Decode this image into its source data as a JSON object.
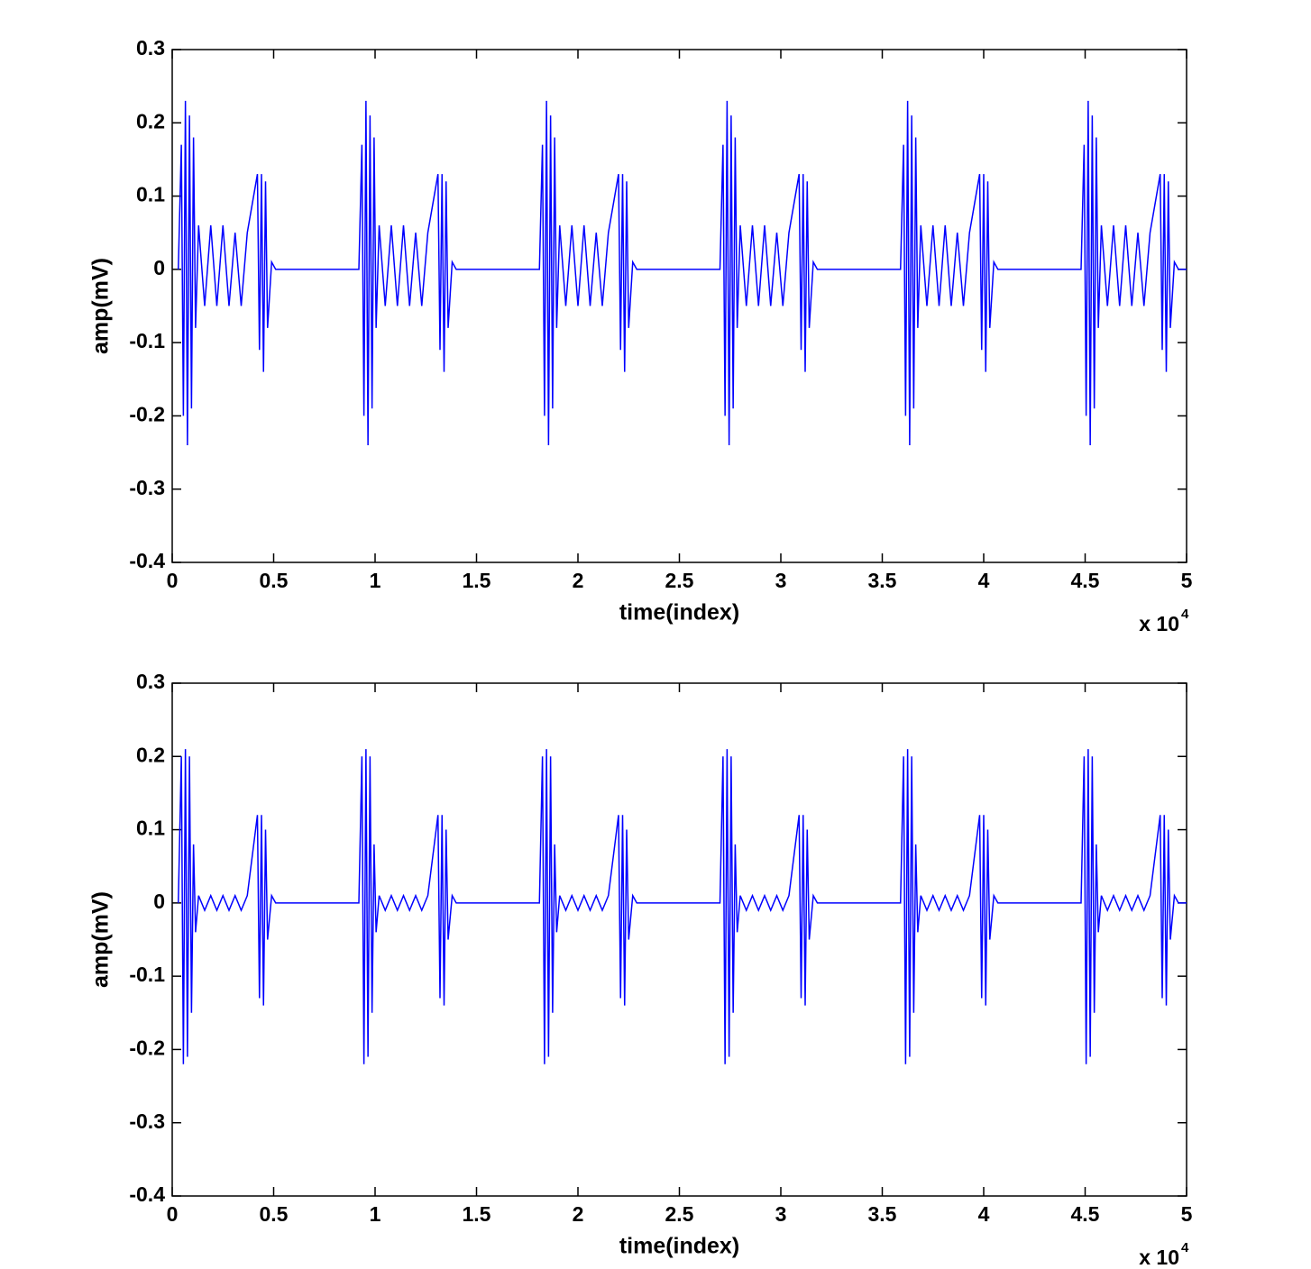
{
  "chart_data": [
    {
      "type": "line",
      "xlabel": "time(index)",
      "ylabel": "amp(mV)",
      "x_multiplier": "x 10",
      "x_exponent": "4",
      "color": "#0000ff",
      "xlim": [
        0,
        50000
      ],
      "ylim": [
        -0.4,
        0.3
      ],
      "xticks": [
        0,
        {
          "value": 5000,
          "label": "0.5"
        },
        {
          "value": 10000,
          "label": "1"
        },
        {
          "value": 15000,
          "label": "1.5"
        },
        {
          "value": 20000,
          "label": "2"
        },
        {
          "value": 25000,
          "label": "2.5"
        },
        {
          "value": 30000,
          "label": "3"
        },
        {
          "value": 35000,
          "label": "3.5"
        },
        {
          "value": 40000,
          "label": "4"
        },
        {
          "value": 45000,
          "label": "4.5"
        },
        {
          "value": 50000,
          "label": "5"
        }
      ],
      "yticks": [
        -0.4,
        -0.3,
        -0.2,
        -0.1,
        0,
        0.1,
        0.2,
        0.3
      ],
      "x": [
        300,
        450,
        550,
        650,
        750,
        850,
        950,
        1050,
        1150,
        1300,
        1600,
        1900,
        2200,
        2500,
        2800,
        3100,
        3400,
        3700,
        4200,
        4300,
        4400,
        4500,
        4600,
        4700,
        4900,
        5100,
        9200,
        9350,
        9450,
        9550,
        9650,
        9750,
        9850,
        9950,
        10050,
        10200,
        10500,
        10800,
        11100,
        11400,
        11700,
        12000,
        12300,
        12600,
        13100,
        13200,
        13300,
        13400,
        13500,
        13600,
        13800,
        14000,
        18100,
        18250,
        18350,
        18450,
        18550,
        18650,
        18750,
        18850,
        18950,
        19100,
        19400,
        19700,
        20000,
        20300,
        20600,
        20900,
        21200,
        21500,
        22000,
        22100,
        22200,
        22300,
        22400,
        22500,
        22700,
        22900,
        27000,
        27150,
        27250,
        27350,
        27450,
        27550,
        27650,
        27750,
        27850,
        28000,
        28300,
        28600,
        28900,
        29200,
        29500,
        29800,
        30100,
        30400,
        30900,
        31000,
        31100,
        31200,
        31300,
        31400,
        31600,
        31800,
        35900,
        36050,
        36150,
        36250,
        36350,
        36450,
        36550,
        36650,
        36750,
        36900,
        37200,
        37500,
        37800,
        38100,
        38400,
        38700,
        39000,
        39300,
        39800,
        39900,
        40000,
        40100,
        40200,
        40300,
        40500,
        40700,
        44800,
        44950,
        45050,
        45150,
        45250,
        45350,
        45450,
        45550,
        45650,
        45800,
        46100,
        46400,
        46700,
        47000,
        47300,
        47600,
        47900,
        48200,
        48700,
        48800,
        48900,
        49000,
        49100,
        49200,
        49400,
        49600,
        50000
      ],
      "values": [
        0,
        0.17,
        -0.2,
        0.23,
        -0.24,
        0.21,
        -0.19,
        0.18,
        -0.08,
        0.06,
        -0.05,
        0.06,
        -0.05,
        0.06,
        -0.05,
        0.05,
        -0.05,
        0.05,
        0.13,
        -0.11,
        0.13,
        -0.14,
        0.12,
        -0.08,
        0.01,
        0,
        0,
        0.17,
        -0.2,
        0.23,
        -0.24,
        0.21,
        -0.19,
        0.18,
        -0.08,
        0.06,
        -0.05,
        0.06,
        -0.05,
        0.06,
        -0.05,
        0.05,
        -0.05,
        0.05,
        0.13,
        -0.11,
        0.13,
        -0.14,
        0.12,
        -0.08,
        0.01,
        0,
        0,
        0.17,
        -0.2,
        0.23,
        -0.24,
        0.21,
        -0.19,
        0.18,
        -0.08,
        0.06,
        -0.05,
        0.06,
        -0.05,
        0.06,
        -0.05,
        0.05,
        -0.05,
        0.05,
        0.13,
        -0.11,
        0.13,
        -0.14,
        0.12,
        -0.08,
        0.01,
        0,
        0,
        0.17,
        -0.2,
        0.23,
        -0.24,
        0.21,
        -0.19,
        0.18,
        -0.08,
        0.06,
        -0.05,
        0.06,
        -0.05,
        0.06,
        -0.05,
        0.05,
        -0.05,
        0.05,
        0.13,
        -0.11,
        0.13,
        -0.14,
        0.12,
        -0.08,
        0.01,
        0,
        0,
        0.17,
        -0.2,
        0.23,
        -0.24,
        0.21,
        -0.19,
        0.18,
        -0.08,
        0.06,
        -0.05,
        0.06,
        -0.05,
        0.06,
        -0.05,
        0.05,
        -0.05,
        0.05,
        0.13,
        -0.11,
        0.13,
        -0.14,
        0.12,
        -0.08,
        0.01,
        0,
        0,
        0.17,
        -0.2,
        0.23,
        -0.24,
        0.21,
        -0.19,
        0.18,
        -0.08,
        0.06,
        -0.05,
        0.06,
        -0.05,
        0.06,
        -0.05,
        0.05,
        -0.05,
        0.05,
        0.13,
        -0.11,
        0.13,
        -0.14,
        0.12,
        -0.08,
        0.01,
        0,
        0
      ]
    },
    {
      "type": "line",
      "xlabel": "time(index)",
      "ylabel": "amp(mV)",
      "x_multiplier": "x 10",
      "x_exponent": "4",
      "color": "#0000ff",
      "xlim": [
        0,
        50000
      ],
      "ylim": [
        -0.4,
        0.3
      ],
      "xticks": [
        0,
        {
          "value": 5000,
          "label": "0.5"
        },
        {
          "value": 10000,
          "label": "1"
        },
        {
          "value": 15000,
          "label": "1.5"
        },
        {
          "value": 20000,
          "label": "2"
        },
        {
          "value": 25000,
          "label": "2.5"
        },
        {
          "value": 30000,
          "label": "3"
        },
        {
          "value": 35000,
          "label": "3.5"
        },
        {
          "value": 40000,
          "label": "4"
        },
        {
          "value": 45000,
          "label": "4.5"
        },
        {
          "value": 50000,
          "label": "5"
        }
      ],
      "yticks": [
        -0.4,
        -0.3,
        -0.2,
        -0.1,
        0,
        0.1,
        0.2,
        0.3
      ],
      "x": [
        300,
        450,
        550,
        650,
        750,
        850,
        950,
        1050,
        1150,
        1300,
        1600,
        1900,
        2200,
        2500,
        2800,
        3100,
        3400,
        3700,
        4200,
        4300,
        4400,
        4500,
        4600,
        4700,
        4900,
        5100,
        9200,
        9350,
        9450,
        9550,
        9650,
        9750,
        9850,
        9950,
        10050,
        10200,
        10500,
        10800,
        11100,
        11400,
        11700,
        12000,
        12300,
        12600,
        13100,
        13200,
        13300,
        13400,
        13500,
        13600,
        13800,
        14000,
        18100,
        18250,
        18350,
        18450,
        18550,
        18650,
        18750,
        18850,
        18950,
        19100,
        19400,
        19700,
        20000,
        20300,
        20600,
        20900,
        21200,
        21500,
        22000,
        22100,
        22200,
        22300,
        22400,
        22500,
        22700,
        22900,
        27000,
        27150,
        27250,
        27350,
        27450,
        27550,
        27650,
        27750,
        27850,
        28000,
        28300,
        28600,
        28900,
        29200,
        29500,
        29800,
        30100,
        30400,
        30900,
        31000,
        31100,
        31200,
        31300,
        31400,
        31600,
        31800,
        35900,
        36050,
        36150,
        36250,
        36350,
        36450,
        36550,
        36650,
        36750,
        36900,
        37200,
        37500,
        37800,
        38100,
        38400,
        38700,
        39000,
        39300,
        39800,
        39900,
        40000,
        40100,
        40200,
        40300,
        40500,
        40700,
        44800,
        44950,
        45050,
        45150,
        45250,
        45350,
        45450,
        45550,
        45650,
        45800,
        46100,
        46400,
        46700,
        47000,
        47300,
        47600,
        47900,
        48200,
        48700,
        48800,
        48900,
        49000,
        49100,
        49200,
        49400,
        49600,
        50000
      ],
      "values": [
        0,
        0.2,
        -0.22,
        0.21,
        -0.21,
        0.2,
        -0.15,
        0.08,
        -0.04,
        0.01,
        -0.01,
        0.01,
        -0.01,
        0.01,
        -0.01,
        0.01,
        -0.01,
        0.01,
        0.12,
        -0.13,
        0.12,
        -0.14,
        0.1,
        -0.05,
        0.01,
        0,
        0,
        0.2,
        -0.22,
        0.21,
        -0.21,
        0.2,
        -0.15,
        0.08,
        -0.04,
        0.01,
        -0.01,
        0.01,
        -0.01,
        0.01,
        -0.01,
        0.01,
        -0.01,
        0.01,
        0.12,
        -0.13,
        0.12,
        -0.14,
        0.1,
        -0.05,
        0.01,
        0,
        0,
        0.2,
        -0.22,
        0.21,
        -0.21,
        0.2,
        -0.15,
        0.08,
        -0.04,
        0.01,
        -0.01,
        0.01,
        -0.01,
        0.01,
        -0.01,
        0.01,
        -0.01,
        0.01,
        0.12,
        -0.13,
        0.12,
        -0.14,
        0.1,
        -0.05,
        0.01,
        0,
        0,
        0.2,
        -0.22,
        0.21,
        -0.21,
        0.2,
        -0.15,
        0.08,
        -0.04,
        0.01,
        -0.01,
        0.01,
        -0.01,
        0.01,
        -0.01,
        0.01,
        -0.01,
        0.01,
        0.12,
        -0.13,
        0.12,
        -0.14,
        0.1,
        -0.05,
        0.01,
        0,
        0,
        0.2,
        -0.22,
        0.21,
        -0.21,
        0.2,
        -0.15,
        0.08,
        -0.04,
        0.01,
        -0.01,
        0.01,
        -0.01,
        0.01,
        -0.01,
        0.01,
        -0.01,
        0.01,
        0.12,
        -0.13,
        0.12,
        -0.14,
        0.1,
        -0.05,
        0.01,
        0,
        0,
        0.2,
        -0.22,
        0.21,
        -0.21,
        0.2,
        -0.15,
        0.08,
        -0.04,
        0.01,
        -0.01,
        0.01,
        -0.01,
        0.01,
        -0.01,
        0.01,
        -0.01,
        0.01,
        0.12,
        -0.13,
        0.12,
        -0.14,
        0.1,
        -0.05,
        0.01,
        0,
        0
      ]
    }
  ]
}
